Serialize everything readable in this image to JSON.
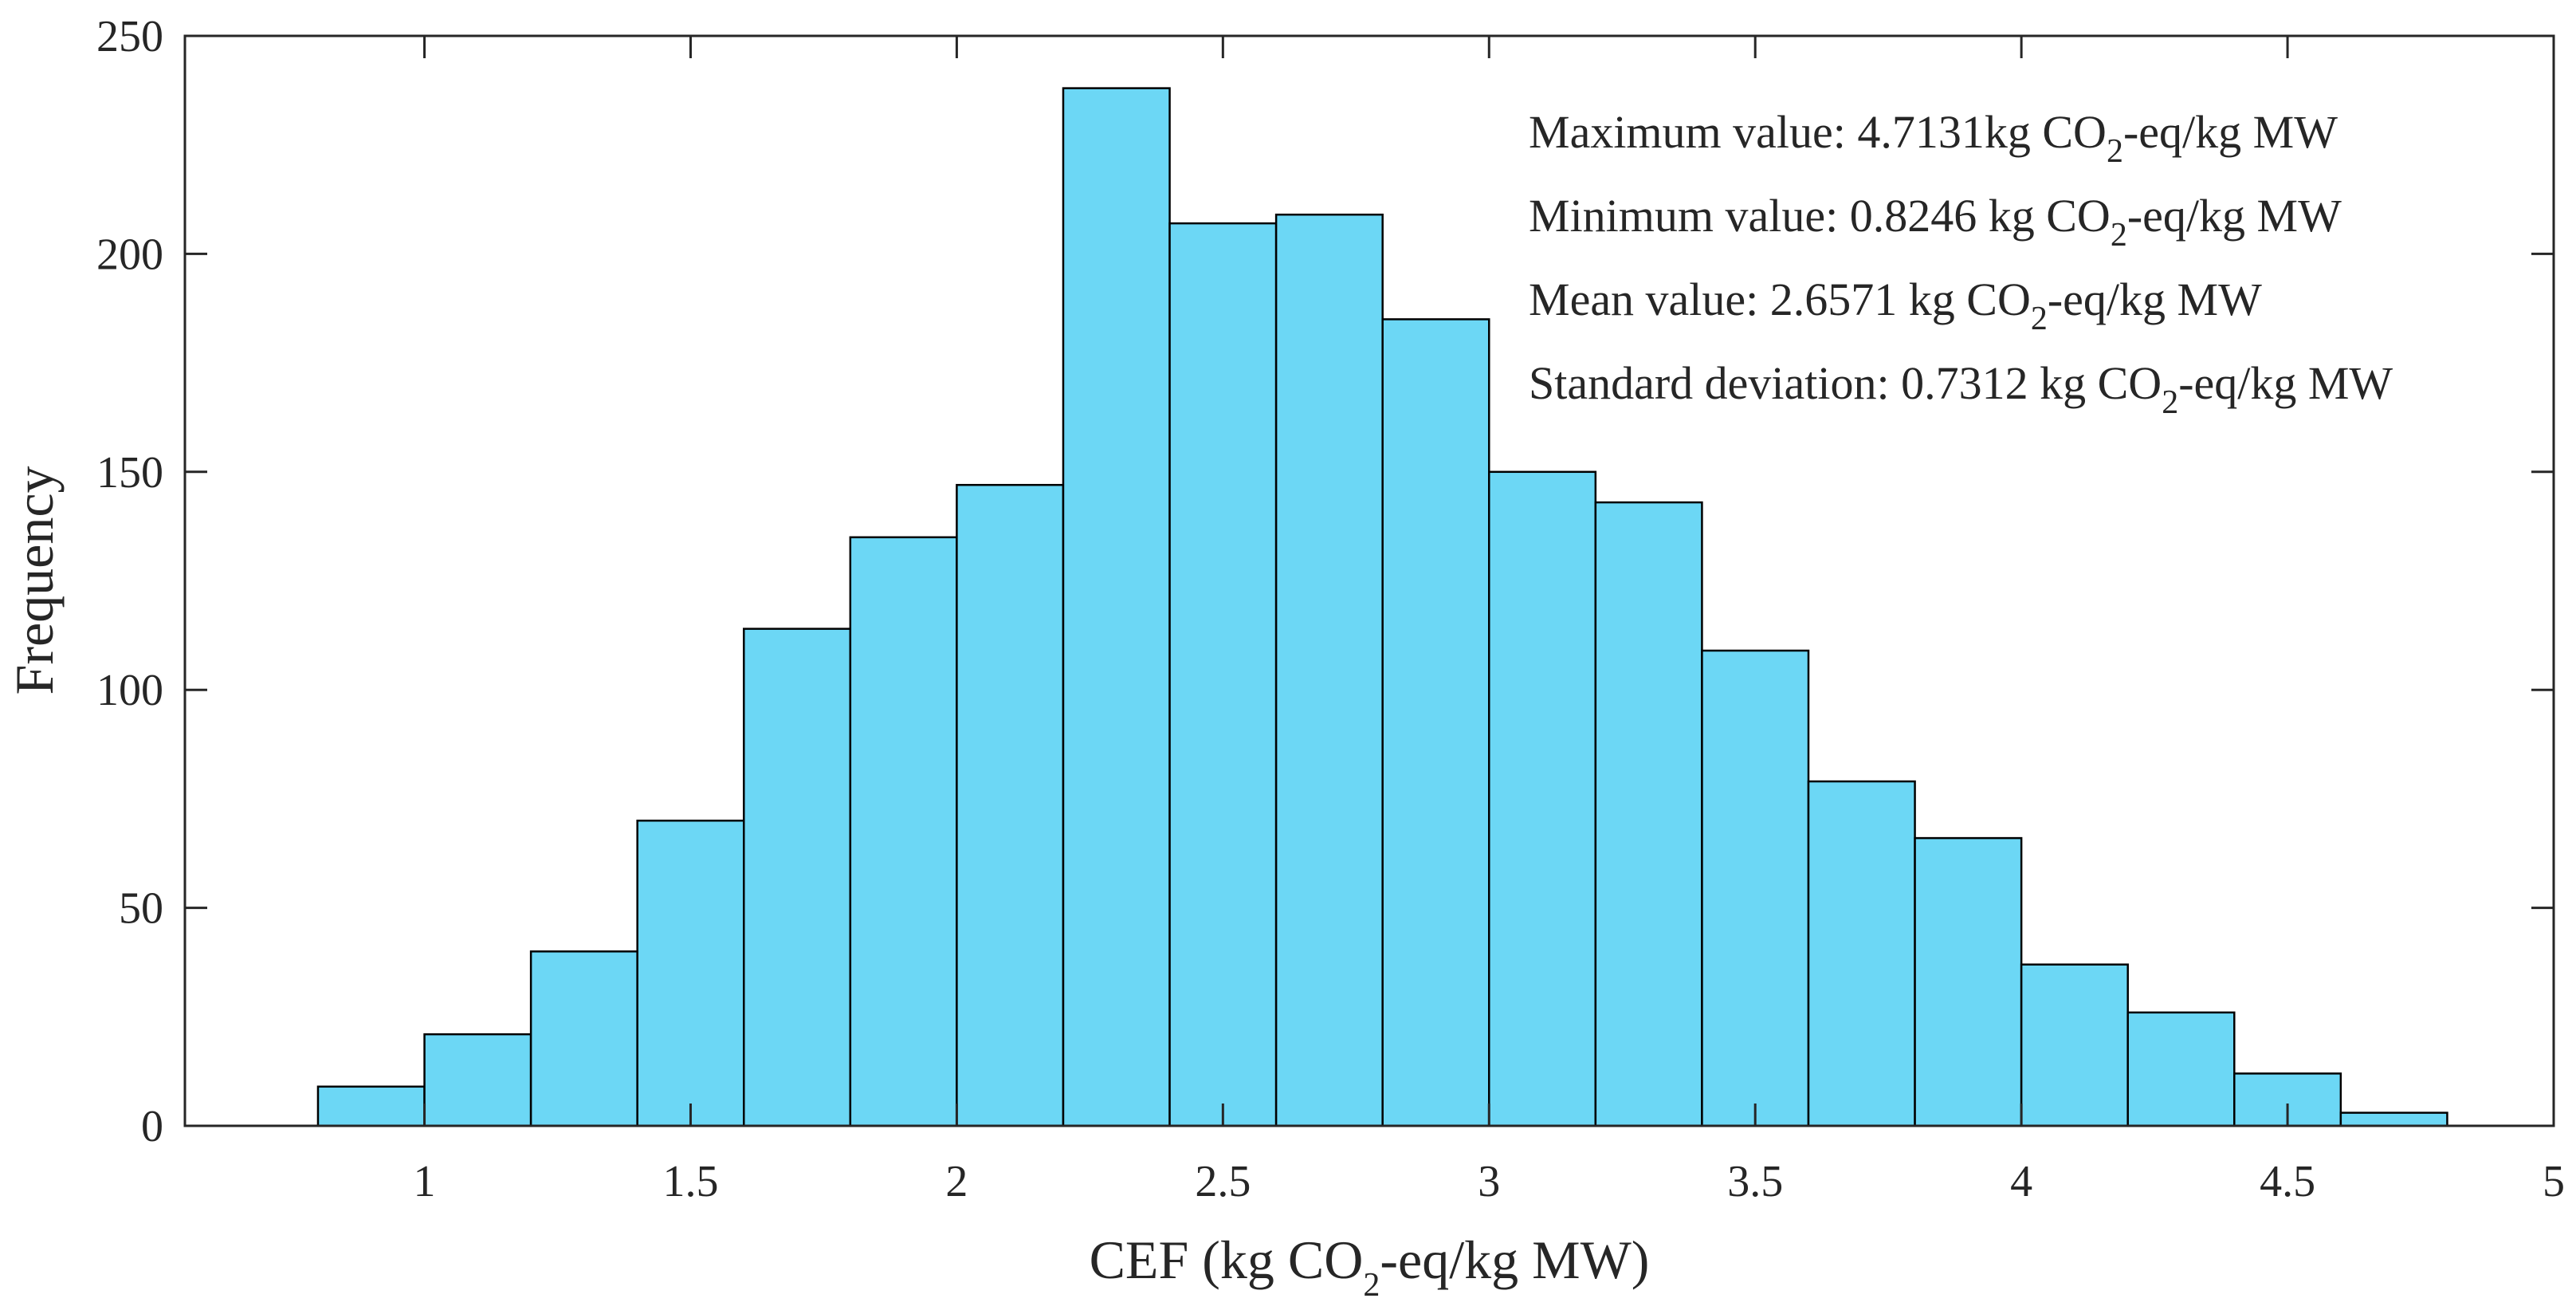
{
  "chart_data": {
    "type": "bar",
    "subtype": "histogram",
    "bin_edges": [
      0.8,
      1.0,
      1.2,
      1.4,
      1.6,
      1.8,
      2.0,
      2.2,
      2.4,
      2.6,
      2.8,
      3.0,
      3.2,
      3.4,
      3.6,
      3.8,
      4.0,
      4.2,
      4.4,
      4.6,
      4.8
    ],
    "values": [
      9,
      21,
      40,
      70,
      114,
      135,
      147,
      238,
      207,
      209,
      185,
      150,
      143,
      109,
      79,
      66,
      37,
      26,
      12,
      3
    ],
    "xlim": [
      0.55,
      5
    ],
    "ylim": [
      0,
      250
    ],
    "xticks": [
      1,
      1.5,
      2,
      2.5,
      3,
      3.5,
      4,
      4.5,
      5
    ],
    "xtick_labels": [
      "1",
      "1.5",
      "2",
      "2.5",
      "3",
      "3.5",
      "4",
      "4.5",
      "5"
    ],
    "yticks": [
      0,
      50,
      100,
      150,
      200,
      250
    ],
    "ytick_labels": [
      "0",
      "50",
      "100",
      "150",
      "200",
      "250"
    ],
    "xlabel": {
      "pre": "CEF (kg CO",
      "sub": "2",
      "post": "-eq/kg MW)"
    },
    "ylabel": "Frequency",
    "grid": false,
    "bar_color": "#6cd7f5",
    "edge_color": "#000000",
    "annotations": [
      {
        "pre": "Maximum value: 4.7131kg CO",
        "sub": "2",
        "post": "-eq/kg MW"
      },
      {
        "pre": "Minimum value: 0.8246 kg CO",
        "sub": "2",
        "post": "-eq/kg MW"
      },
      {
        "pre": "Mean value: 2.6571 kg CO",
        "sub": "2",
        "post": "-eq/kg MW"
      },
      {
        "pre": "Standard deviation: 0.7312 kg CO",
        "sub": "2",
        "post": "-eq/kg MW"
      }
    ]
  }
}
